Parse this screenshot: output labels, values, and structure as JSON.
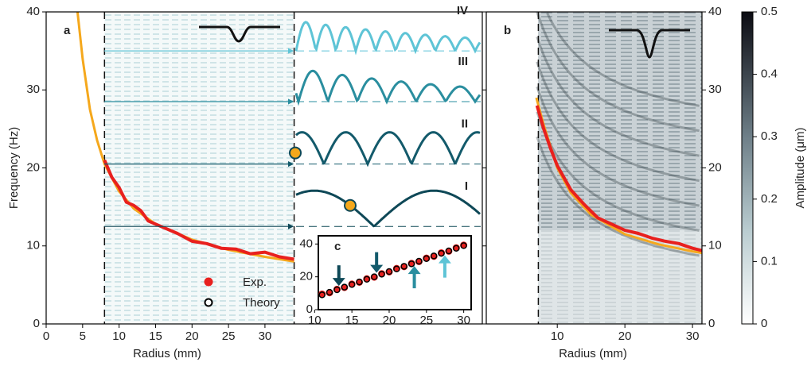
{
  "chart_data": [
    {
      "type": "line",
      "panel": "a",
      "xlabel": "Radius (mm)",
      "ylabel": "Frequency (Hz)",
      "xlim": [
        0,
        59.8
      ],
      "ylim": [
        0,
        40
      ],
      "xticks": [
        0,
        5,
        10,
        15,
        20,
        25,
        30
      ],
      "yticks": [
        0,
        10,
        20,
        30,
        40
      ],
      "dashed_x": [
        8,
        34
      ],
      "series": [
        {
          "color": "#f5a81c",
          "x": [
            4.3,
            5,
            6,
            7,
            8,
            10,
            12,
            15,
            20,
            25,
            30,
            34
          ],
          "values": [
            40,
            34,
            27.5,
            23.5,
            20.5,
            17,
            14.8,
            12.8,
            10.8,
            9.5,
            8.6,
            8
          ]
        },
        {
          "color": "#e8201e",
          "x": [
            8,
            9,
            10,
            11,
            12,
            13,
            14,
            16,
            18,
            20,
            22,
            24,
            26,
            28,
            30,
            32,
            34
          ],
          "values": [
            21,
            18.8,
            17.5,
            15.6,
            15.2,
            14.5,
            13.2,
            12.4,
            11.6,
            10.6,
            10.3,
            9.7,
            9.6,
            9.0,
            9.2,
            8.6,
            8.3
          ]
        }
      ],
      "modes": [
        {
          "label": "I",
          "frequency": 12.5,
          "color": "#0e4857"
        },
        {
          "label": "II",
          "frequency": 20.5,
          "color": "#135a6b"
        },
        {
          "label": "III",
          "frequency": 28.5,
          "color": "#2a8e9f"
        },
        {
          "label": "IV",
          "frequency": 35,
          "color": "#5ec4d6"
        }
      ]
    },
    {
      "type": "line",
      "panel": "b",
      "xlabel": "Radius (mm)",
      "xlim": [
        -0.5,
        31.4
      ],
      "ylim": [
        0,
        40
      ],
      "xticks": [
        10,
        20,
        30
      ],
      "yticks": [
        0,
        10,
        20,
        30,
        40
      ],
      "dashed_x": [
        7.2
      ],
      "series": [
        {
          "color": "#f5a81c",
          "x": [
            6.9,
            8,
            10,
            12,
            15,
            20,
            25,
            30,
            31.4
          ],
          "values": [
            29,
            25.5,
            20,
            16.8,
            14,
            11.5,
            10.2,
            9.3,
            9.1
          ]
        },
        {
          "color": "#e8201e",
          "x": [
            7,
            8,
            9,
            10,
            12,
            14,
            16,
            18,
            20,
            22,
            24,
            26,
            28,
            30,
            31.4
          ],
          "values": [
            28,
            25,
            22.5,
            20.3,
            17.2,
            15.3,
            13.6,
            12.8,
            12,
            11.6,
            11,
            10.6,
            10.3,
            9.7,
            9.4
          ]
        }
      ]
    },
    {
      "type": "scatter",
      "panel": "c",
      "xlim": [
        10.5,
        31
      ],
      "ylim": [
        0,
        45
      ],
      "xticks": [
        10,
        15,
        20,
        25,
        30
      ],
      "yticks": [
        0,
        20,
        40
      ],
      "series": [
        {
          "name": "Exp.",
          "color": "#e8201e",
          "x": [
            11,
            12,
            13,
            14,
            15,
            16,
            17,
            18,
            19,
            20,
            21,
            22,
            23,
            24,
            25,
            26,
            27,
            28,
            29,
            30
          ],
          "values": [
            9.5,
            10.3,
            12.4,
            13.5,
            15.6,
            16.7,
            18.8,
            19.8,
            21.9,
            23.0,
            25.1,
            26.2,
            28.2,
            29.3,
            31.4,
            32.5,
            34.6,
            35.6,
            37.7,
            39.3
          ]
        },
        {
          "name": "Theory",
          "color": "#000000",
          "x": [
            11,
            12,
            13,
            14,
            15,
            16,
            17,
            18,
            19,
            20,
            21,
            22,
            23,
            24,
            25,
            26,
            27,
            28,
            29,
            30
          ],
          "values": [
            9.0,
            10.6,
            12.1,
            13.7,
            15.3,
            16.9,
            18.5,
            20.0,
            21.6,
            23.2,
            24.8,
            26.4,
            27.9,
            29.5,
            31.1,
            32.7,
            34.3,
            35.8,
            37.4,
            39.0
          ]
        }
      ]
    },
    {
      "type": "colorbar",
      "label": "Amplitude (μm)",
      "ylim": [
        0,
        0.5
      ],
      "yticks": [
        0,
        0.1,
        0.2,
        0.3,
        0.4,
        0.5
      ]
    }
  ]
}
